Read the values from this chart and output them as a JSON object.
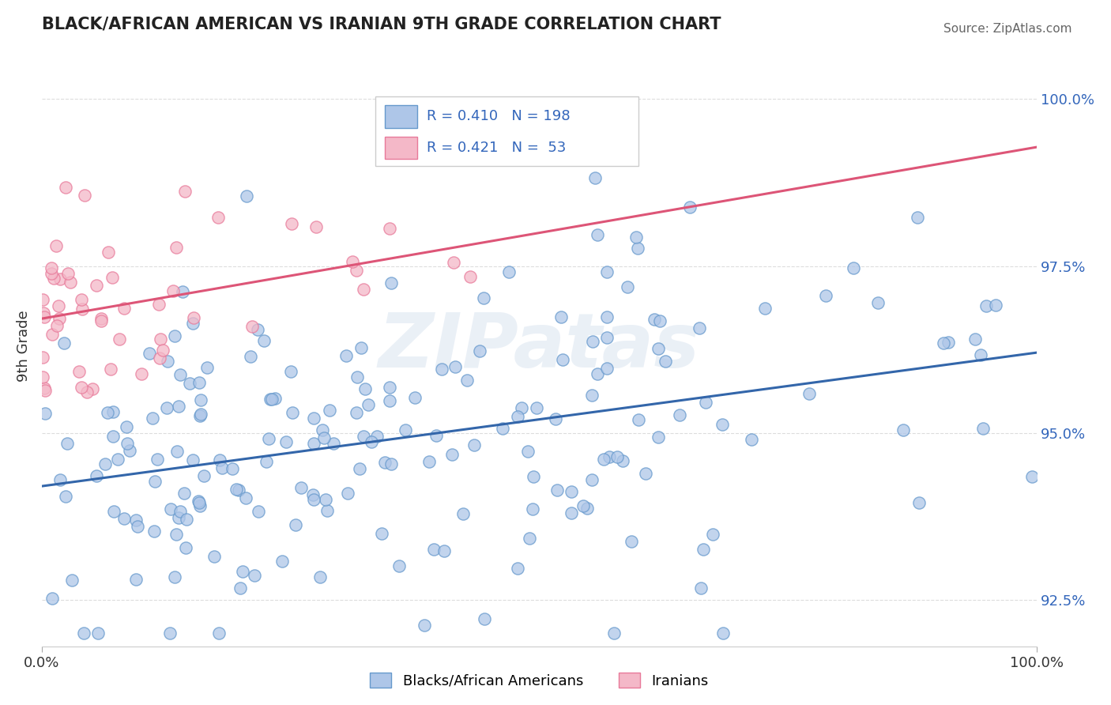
{
  "title": "BLACK/AFRICAN AMERICAN VS IRANIAN 9TH GRADE CORRELATION CHART",
  "source": "Source: ZipAtlas.com",
  "ylabel": "9th Grade",
  "xlim": [
    0.0,
    100.0
  ],
  "ylim": [
    91.8,
    100.8
  ],
  "yticks": [
    92.5,
    95.0,
    97.5,
    100.0
  ],
  "xticks": [
    0.0,
    100.0
  ],
  "xticklabels": [
    "0.0%",
    "100.0%"
  ],
  "yticklabels": [
    "92.5%",
    "95.0%",
    "97.5%",
    "100.0%"
  ],
  "blue_face_color": "#AEC6E8",
  "blue_edge_color": "#6699CC",
  "pink_face_color": "#F4B8C8",
  "pink_edge_color": "#E87A9A",
  "blue_line_color": "#3366AA",
  "pink_line_color": "#DD5577",
  "blue_R": 0.41,
  "blue_N": 198,
  "pink_R": 0.421,
  "pink_N": 53,
  "legend_label_blue": "Blacks/African Americans",
  "legend_label_pink": "Iranians",
  "watermark_text": "ZIPatas",
  "watermark_color": "#C5D5E8",
  "title_color": "#222222",
  "source_color": "#666666",
  "ylabel_color": "#333333",
  "ytick_color": "#3366BB",
  "xtick_color": "#333333",
  "grid_color": "#DDDDDD",
  "legend_box_color": "#CCCCCC",
  "legend_R_color": "#333333",
  "legend_N_color": "#3366BB"
}
